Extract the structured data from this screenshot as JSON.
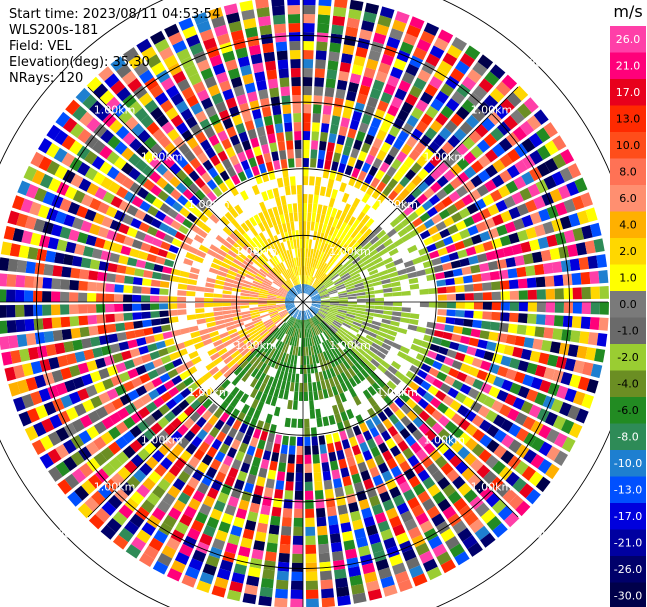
{
  "info": {
    "start_time": "Start time: 2023/08/11 04:53:54",
    "instrument": "WLS200s-181",
    "field": "Field: VEL",
    "elevation": "Elevation(deg): 35.30",
    "nrays": "NRays: 120"
  },
  "chart_data": {
    "type": "heatmap",
    "projection": "polar-ppi",
    "field": "VEL",
    "units": "m/s",
    "nrays": 120,
    "elevation_deg": 35.3,
    "range_rings_km": [
      1.0,
      2.0,
      3.0,
      4.0,
      5.0
    ],
    "range_ring_label": "1.00km",
    "colorbar": {
      "title": "m/s",
      "ticks": [
        "26.0",
        "21.0",
        "17.0",
        "13.0",
        "10.0",
        "8.0",
        "6.0",
        "4.0",
        "2.0",
        "1.0",
        "0.0",
        "-1.0",
        "-2.0",
        "-4.0",
        "-6.0",
        "-8.0",
        "-10.0",
        "-13.0",
        "-17.0",
        "-21.0",
        "-26.0",
        "-30.0"
      ],
      "colors": [
        "#ff3fa8",
        "#ff007a",
        "#e8001c",
        "#ff2a00",
        "#ff4d1a",
        "#ff7255",
        "#ff8f70",
        "#ffb000",
        "#ffd700",
        "#ffff00",
        "#7a7a7a",
        "#6a6a6a",
        "#9acd32",
        "#6b8e23",
        "#228b22",
        "#2e8b57",
        "#1e7fd0",
        "#0050ff",
        "#0000dd",
        "#0000a0",
        "#00006a",
        "#00004a"
      ]
    },
    "sectors": [
      {
        "direction": "north",
        "velocity_m_s": 3
      },
      {
        "direction": "west",
        "velocity_m_s": 6
      },
      {
        "direction": "south",
        "velocity_m_s": -6
      },
      {
        "direction": "east",
        "velocity_m_s": -2
      }
    ]
  }
}
